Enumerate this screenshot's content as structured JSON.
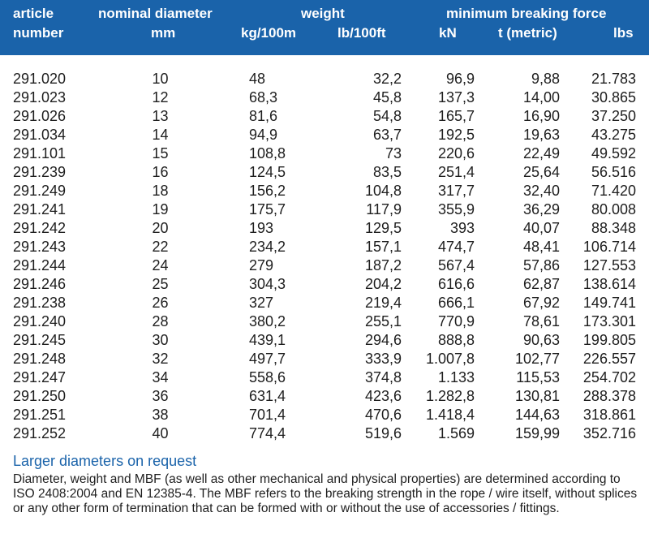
{
  "header": {
    "article_line1": "article",
    "article_line2": "number",
    "diameter_line1": "nominal diameter",
    "diameter_line2": "mm",
    "weight_group": "weight",
    "weight_kg": "kg/100m",
    "weight_lb": "lb/100ft",
    "mbf_group": "minimum breaking force",
    "mbf_kn": "kN",
    "mbf_t": "t (metric)",
    "mbf_lbs": "lbs"
  },
  "rows": [
    {
      "article": "291.020",
      "mm": "10",
      "kg": "48",
      "lb": "32,2",
      "kn": "96,9",
      "t": "9,88",
      "lbs": "21.783"
    },
    {
      "article": "291.023",
      "mm": "12",
      "kg": "68,3",
      "lb": "45,8",
      "kn": "137,3",
      "t": "14,00",
      "lbs": "30.865"
    },
    {
      "article": "291.026",
      "mm": "13",
      "kg": "81,6",
      "lb": "54,8",
      "kn": "165,7",
      "t": "16,90",
      "lbs": "37.250"
    },
    {
      "article": "291.034",
      "mm": "14",
      "kg": "94,9",
      "lb": "63,7",
      "kn": "192,5",
      "t": "19,63",
      "lbs": "43.275"
    },
    {
      "article": "291.101",
      "mm": "15",
      "kg": "108,8",
      "lb": "73",
      "kn": "220,6",
      "t": "22,49",
      "lbs": "49.592"
    },
    {
      "article": "291.239",
      "mm": "16",
      "kg": "124,5",
      "lb": "83,5",
      "kn": "251,4",
      "t": "25,64",
      "lbs": "56.516"
    },
    {
      "article": "291.249",
      "mm": "18",
      "kg": "156,2",
      "lb": "104,8",
      "kn": "317,7",
      "t": "32,40",
      "lbs": "71.420"
    },
    {
      "article": "291.241",
      "mm": "19",
      "kg": "175,7",
      "lb": "117,9",
      "kn": "355,9",
      "t": "36,29",
      "lbs": "80.008"
    },
    {
      "article": "291.242",
      "mm": "20",
      "kg": "193",
      "lb": "129,5",
      "kn": "393",
      "t": "40,07",
      "lbs": "88.348"
    },
    {
      "article": "291.243",
      "mm": "22",
      "kg": "234,2",
      "lb": "157,1",
      "kn": "474,7",
      "t": "48,41",
      "lbs": "106.714"
    },
    {
      "article": "291.244",
      "mm": "24",
      "kg": "279",
      "lb": "187,2",
      "kn": "567,4",
      "t": "57,86",
      "lbs": "127.553"
    },
    {
      "article": "291.246",
      "mm": "25",
      "kg": "304,3",
      "lb": "204,2",
      "kn": "616,6",
      "t": "62,87",
      "lbs": "138.614"
    },
    {
      "article": "291.238",
      "mm": "26",
      "kg": "327",
      "lb": "219,4",
      "kn": "666,1",
      "t": "67,92",
      "lbs": "149.741"
    },
    {
      "article": "291.240",
      "mm": "28",
      "kg": "380,2",
      "lb": "255,1",
      "kn": "770,9",
      "t": "78,61",
      "lbs": "173.301"
    },
    {
      "article": "291.245",
      "mm": "30",
      "kg": "439,1",
      "lb": "294,6",
      "kn": "888,8",
      "t": "90,63",
      "lbs": "199.805"
    },
    {
      "article": "291.248",
      "mm": "32",
      "kg": "497,7",
      "lb": "333,9",
      "kn": "1.007,8",
      "t": "102,77",
      "lbs": "226.557"
    },
    {
      "article": "291.247",
      "mm": "34",
      "kg": "558,6",
      "lb": "374,8",
      "kn": "1.133",
      "t": "115,53",
      "lbs": "254.702"
    },
    {
      "article": "291.250",
      "mm": "36",
      "kg": "631,4",
      "lb": "423,6",
      "kn": "1.282,8",
      "t": "130,81",
      "lbs": "288.378"
    },
    {
      "article": "291.251",
      "mm": "38",
      "kg": "701,4",
      "lb": "470,6",
      "kn": "1.418,4",
      "t": "144,63",
      "lbs": "318.861"
    },
    {
      "article": "291.252",
      "mm": "40",
      "kg": "774,4",
      "lb": "519,6",
      "kn": "1.569",
      "t": "159,99",
      "lbs": "352.716"
    }
  ],
  "notes": {
    "title": "Larger diameters on request",
    "body": "Diameter, weight and MBF (as well as other mechanical and physical properties) are determined according to ISO 2408:2004 and EN 12385-4. The MBF refers to the breaking strength in the rope / wire itself, without splices or any other form of termination that can be formed with or without the use of accessories / fittings."
  },
  "colors": {
    "header_bg": "#1a63aa",
    "header_text": "#ffffff",
    "note_title": "#1a63aa",
    "body_text": "#1e1e1e"
  }
}
